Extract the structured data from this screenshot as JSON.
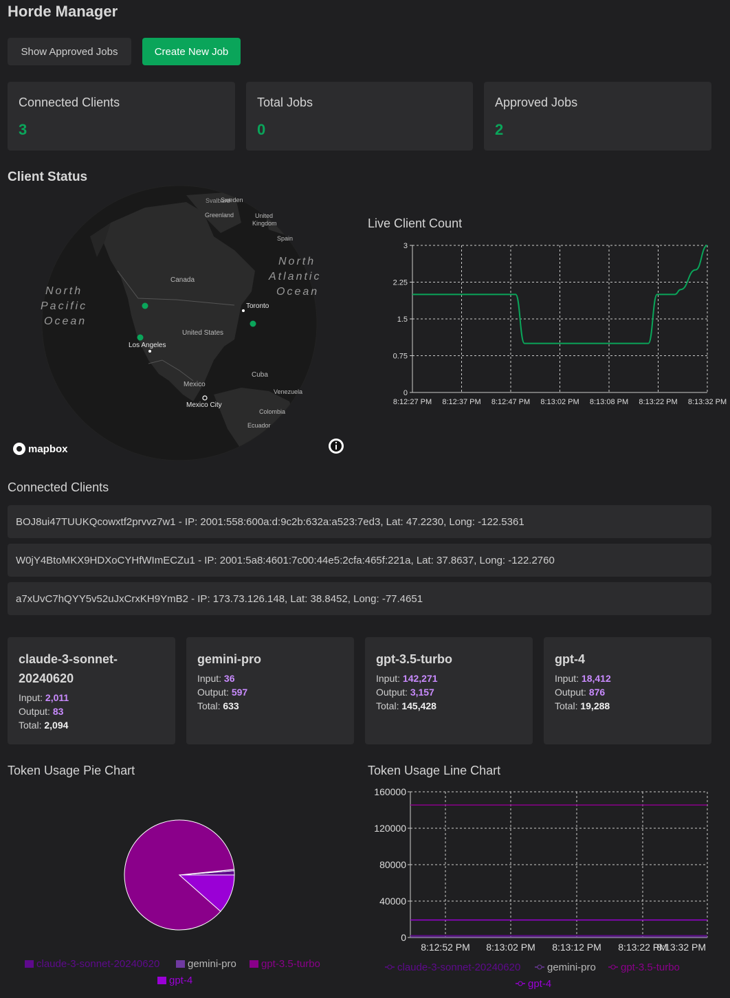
{
  "app": {
    "title": "Horde Manager"
  },
  "toolbar": {
    "show_approved_label": "Show Approved Jobs",
    "create_job_label": "Create New Job"
  },
  "stats": [
    {
      "label": "Connected Clients",
      "value": "3"
    },
    {
      "label": "Total Jobs",
      "value": "0"
    },
    {
      "label": "Approved Jobs",
      "value": "2"
    }
  ],
  "client_status": {
    "heading": "Client Status",
    "map": {
      "labels": {
        "svalbard": "Svalbard",
        "sweden": "Sweden",
        "greenland": "Greenland",
        "uk_line1": "United",
        "uk_line2": "Kingdom",
        "spain": "Spain",
        "npo1": "North",
        "npo2": "Pacific",
        "npo3": "Ocean",
        "nao1": "North",
        "nao2": "Atlantic",
        "nao3": "Ocean",
        "canada": "Canada",
        "us": "United States",
        "mexico": "Mexico",
        "cuba": "Cuba",
        "venezuela": "Venezuela",
        "colombia": "Colombia",
        "ecuador": "Ecuador",
        "toronto": "Toronto",
        "la": "Los Angeles",
        "mexico_city": "Mexico City"
      },
      "attribution": "mapbox",
      "accent": "#0aa55a"
    }
  },
  "live_chart_title": "Live Client Count",
  "connected_clients": {
    "heading": "Connected Clients",
    "rows": [
      "BOJ8ui47TUUKQcowxtf2prvvz7w1 - IP: 2001:558:600a:d:9c2b:632a:a523:7ed3, Lat: 47.2230, Long: -122.5361",
      "W0jY4BtoMKX9HDXoCYHfWImECZu1 - IP: 2001:5a8:4601:7c00:44e5:2cfa:465f:221a, Lat: 37.8637, Long: -122.2760",
      "a7xUvC7hQYY5v52uJxCrxKH9YmB2 - IP: 173.73.126.148, Lat: 38.8452, Long: -77.4651"
    ]
  },
  "models": [
    {
      "name_line1": "claude-3-sonnet-",
      "name_line2": "20240620",
      "input_label": "Input:",
      "input": "2,011",
      "output_label": "Output:",
      "output": "83",
      "total_label": "Total:",
      "total": "2,094"
    },
    {
      "name_line1": "gemini-pro",
      "name_line2": "",
      "input_label": "Input:",
      "input": "36",
      "output_label": "Output:",
      "output": "597",
      "total_label": "Total:",
      "total": "633"
    },
    {
      "name_line1": "gpt-3.5-turbo",
      "name_line2": "",
      "input_label": "Input:",
      "input": "142,271",
      "output_label": "Output:",
      "output": "3,157",
      "total_label": "Total:",
      "total": "145,428"
    },
    {
      "name_line1": "gpt-4",
      "name_line2": "",
      "input_label": "Input:",
      "input": "18,412",
      "output_label": "Output:",
      "output": "876",
      "total_label": "Total:",
      "total": "19,288"
    }
  ],
  "pie_title": "Token Usage Pie Chart",
  "line_title": "Token Usage Line Chart",
  "chart_data": [
    {
      "type": "line",
      "title": "Live Client Count",
      "x": [
        "8:12:27 PM",
        "8:12:37 PM",
        "8:12:47 PM",
        "8:13:02 PM",
        "8:13:08 PM",
        "8:13:22 PM",
        "8:13:32 PM"
      ],
      "x_ticks": [
        "8:12:27 PM",
        "8:12:37 PM",
        "8:12:47 PM",
        "8:13:02 PM",
        "8:13:08 PM",
        "8:13:22 PM",
        "8:13:32 PM"
      ],
      "y_ticks": [
        "0",
        "0.75",
        "1.5",
        "2.25",
        "3"
      ],
      "ylim": [
        0,
        3
      ],
      "series": [
        {
          "color": "#0aa55a",
          "values": [
            [
              0,
              2
            ],
            [
              0.35,
              2
            ],
            [
              0.38,
              1
            ],
            [
              0.6,
              1
            ],
            [
              0.8,
              1
            ],
            [
              0.83,
              2
            ],
            [
              0.89,
              2
            ],
            [
              0.91,
              2.1
            ],
            [
              0.96,
              2.5
            ],
            [
              1.0,
              3
            ]
          ]
        }
      ],
      "grid": true
    },
    {
      "type": "pie",
      "title": "Token Usage Pie Chart",
      "categories": [
        "claude-3-sonnet-20240620",
        "gemini-pro",
        "gpt-3.5-turbo",
        "gpt-4"
      ],
      "values": [
        2094,
        633,
        145428,
        19288
      ],
      "colors": [
        "#5e0a8c",
        "#6f3aa0",
        "#8a008a",
        "#9a00d6"
      ],
      "legend": "bottom"
    },
    {
      "type": "line",
      "title": "Token Usage Line Chart",
      "x_ticks": [
        "8:12:52 PM",
        "8:13:02 PM",
        "8:13:12 PM",
        "8:13:22 PM",
        "8:13:32 PM"
      ],
      "y_ticks": [
        "0",
        "40000",
        "80000",
        "120000",
        "160000"
      ],
      "ylim": [
        0,
        160000
      ],
      "series": [
        {
          "name": "claude-3-sonnet-20240620",
          "color": "#5e0a8c",
          "values": [
            2094,
            2094,
            2094,
            2094,
            2094
          ]
        },
        {
          "name": "gemini-pro",
          "color": "#6f3aa0",
          "values": [
            633,
            633,
            633,
            633,
            633
          ]
        },
        {
          "name": "gpt-3.5-turbo",
          "color": "#8a008a",
          "values": [
            145428,
            145428,
            145428,
            145428,
            145428
          ]
        },
        {
          "name": "gpt-4",
          "color": "#9a00d6",
          "values": [
            19288,
            19288,
            19288,
            19288,
            19288
          ]
        }
      ],
      "legend": "bottom",
      "grid": true
    }
  ]
}
